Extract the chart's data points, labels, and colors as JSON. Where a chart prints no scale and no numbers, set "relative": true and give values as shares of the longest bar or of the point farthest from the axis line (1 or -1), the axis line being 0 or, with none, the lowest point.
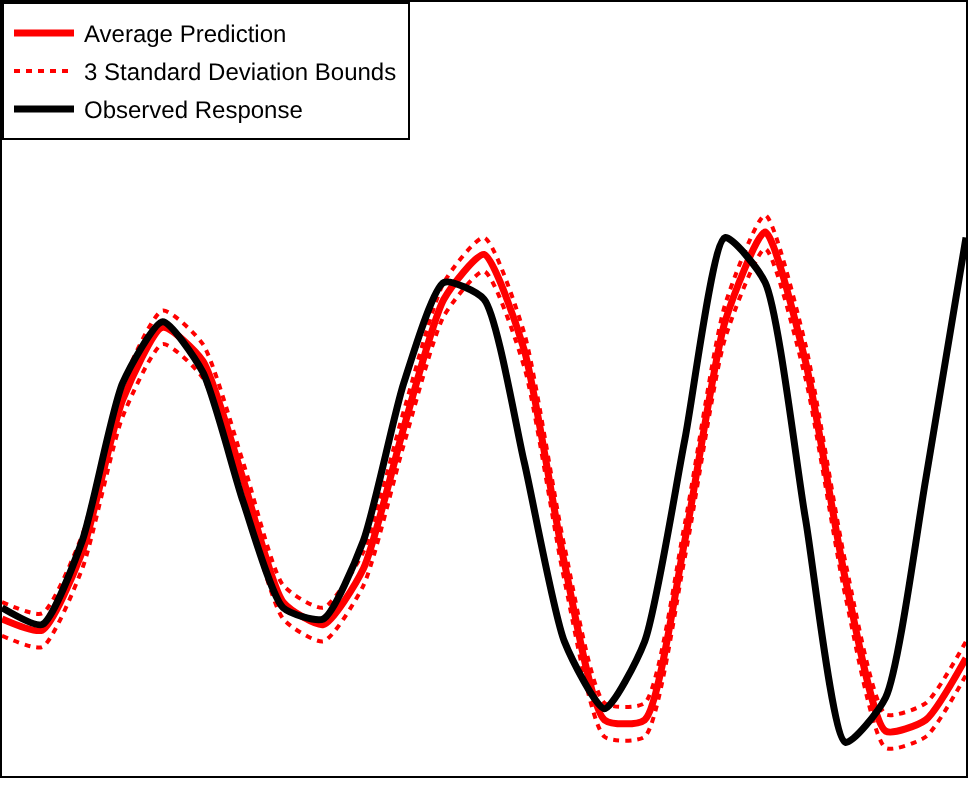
{
  "chart_data": {
    "type": "line",
    "relative": true,
    "legend": "top left",
    "categories": [
      null,
      null,
      null,
      null,
      null,
      null,
      null,
      null,
      null,
      null,
      null,
      null,
      null,
      null,
      null,
      null,
      null,
      null,
      null,
      null,
      null,
      null,
      null,
      null,
      null
    ],
    "series": [
      {
        "name": "Average Prediction",
        "color": "#ff0000",
        "line_style": "solid",
        "values": [
          0.28,
          0.26,
          0.4,
          0.67,
          0.8,
          0.74,
          0.53,
          0.31,
          0.27,
          0.37,
          0.62,
          0.85,
          0.93,
          0.76,
          0.38,
          0.1,
          0.1,
          0.42,
          0.81,
          0.97,
          0.74,
          0.35,
          0.08,
          0.1,
          0.21
        ]
      },
      {
        "name": "3 Standard Deviation Bounds",
        "color": "#ff0000",
        "line_style": "dotted",
        "values": [
          0.31,
          0.29,
          0.43,
          0.7,
          0.83,
          0.77,
          0.56,
          0.34,
          0.3,
          0.4,
          0.65,
          0.88,
          0.96,
          0.79,
          0.41,
          0.13,
          0.13,
          0.45,
          0.84,
          1.0,
          0.77,
          0.38,
          0.11,
          0.13,
          0.24
        ]
      },
      {
        "color": "#ff0000",
        "line_style": "dotted",
        "values": [
          0.25,
          0.23,
          0.37,
          0.64,
          0.77,
          0.71,
          0.5,
          0.28,
          0.24,
          0.34,
          0.59,
          0.82,
          0.9,
          0.73,
          0.35,
          0.07,
          0.07,
          0.39,
          0.78,
          0.94,
          0.71,
          0.32,
          0.05,
          0.07,
          0.18
        ]
      },
      {
        "name": "Observed Response",
        "color": "#000000",
        "line_style": "solid",
        "values": [
          0.3,
          0.27,
          0.42,
          0.7,
          0.81,
          0.72,
          0.49,
          0.3,
          0.28,
          0.42,
          0.7,
          0.88,
          0.85,
          0.56,
          0.24,
          0.12,
          0.24,
          0.6,
          0.96,
          0.88,
          0.46,
          0.06,
          0.14,
          0.53,
          0.96
        ]
      }
    ]
  }
}
